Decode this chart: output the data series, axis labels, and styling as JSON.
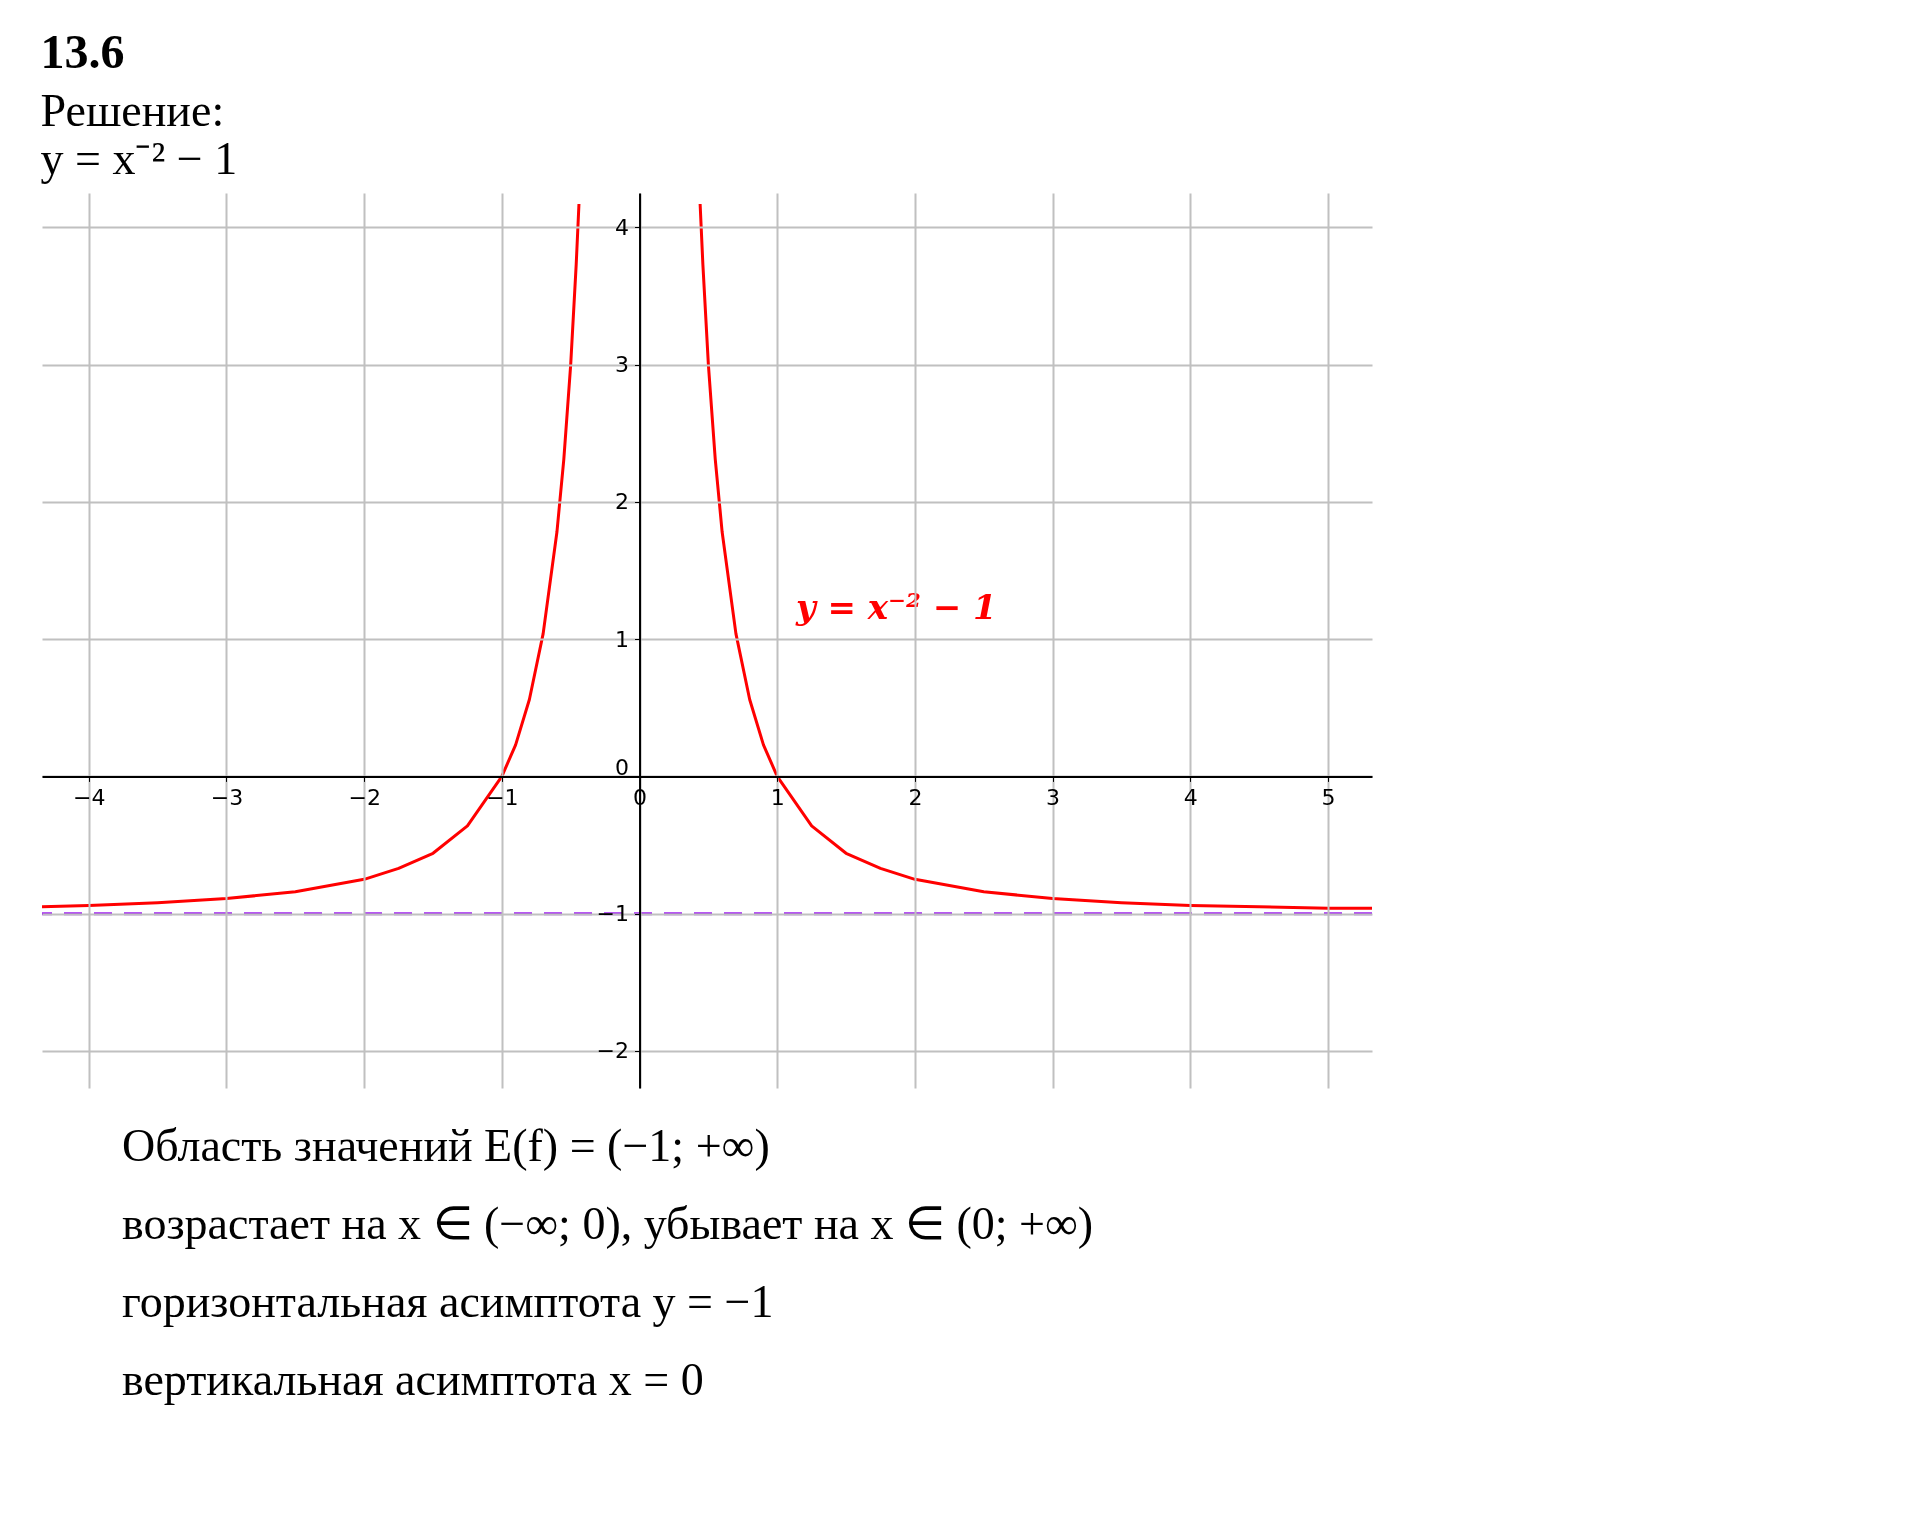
{
  "chart_data": {
    "type": "line",
    "title": "13.6",
    "subtitle": [
      "Решение:",
      "y = x⁻² − 1"
    ],
    "xlim": [
      -4.34,
      5.32
    ],
    "ylim": [
      -2.27,
      4.25
    ],
    "xticks": [
      -4,
      -3,
      -2,
      -1,
      0,
      1,
      2,
      3,
      4,
      5
    ],
    "yticks": [
      -2,
      -1,
      0,
      1,
      2,
      3,
      4
    ],
    "grid": true,
    "marker": "none",
    "line_style": "solid",
    "series": [
      {
        "color": "#ff0000",
        "x": [
          -4.34,
          -4,
          -3.5,
          -3,
          -2.5,
          -2,
          -1.75,
          -1.5,
          -1.25,
          -1,
          -0.9,
          -0.8,
          -0.7,
          -0.6,
          -0.55,
          -0.5,
          -0.46,
          -0.44
        ],
        "values": [
          -0.95,
          -0.94,
          -0.92,
          -0.89,
          -0.84,
          -0.75,
          -0.67,
          -0.56,
          -0.36,
          0,
          0.23,
          0.56,
          1.04,
          1.78,
          2.31,
          3,
          3.73,
          4.17
        ]
      },
      {
        "name": "y = x⁻² − 1",
        "color": "#ff0000",
        "x": [
          0.44,
          0.46,
          0.5,
          0.55,
          0.6,
          0.7,
          0.8,
          0.9,
          1,
          1.25,
          1.5,
          1.75,
          2,
          2.5,
          3,
          3.5,
          4,
          4.5,
          5,
          5.32
        ],
        "values": [
          4.17,
          3.73,
          3,
          2.31,
          1.78,
          1.04,
          0.56,
          0.23,
          0,
          -0.36,
          -0.56,
          -0.67,
          -0.75,
          -0.84,
          -0.89,
          -0.92,
          -0.94,
          -0.95,
          -0.96,
          -0.96
        ]
      }
    ],
    "ref_lines": [
      {
        "axis": "y",
        "value": -1,
        "color": "#a020f0",
        "line_style": "dashed"
      }
    ],
    "annotations": [
      "Область значений E(f) = (−1; +∞)",
      "возрастает на x ∈ (−∞; 0), убывает на x ∈ (0; +∞)",
      "горизонтальная асимптота y = −1",
      "вертикальная асимптота x = 0"
    ]
  }
}
